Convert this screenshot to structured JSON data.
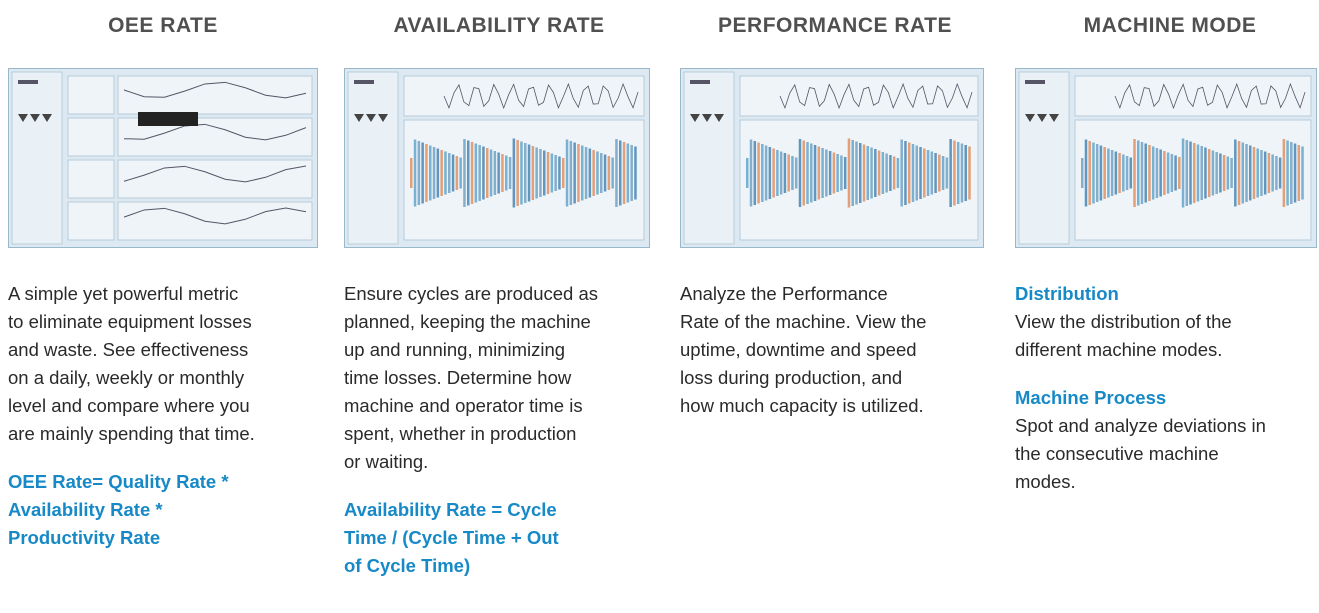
{
  "columns": [
    {
      "title": "OEE RATE",
      "sections": [
        {
          "body": [
            "A simple yet powerful metric",
            "to eliminate equipment losses",
            "and waste. See effectiveness",
            "on a daily, weekly or monthly",
            "level and compare where you",
            "are mainly spending that time."
          ]
        },
        {
          "highlight": [
            "OEE Rate= Quality Rate *",
            "Availability Rate *",
            "Productivity Rate"
          ]
        }
      ]
    },
    {
      "title": "AVAILABILITY RATE",
      "sections": [
        {
          "body": [
            "Ensure cycles are produced as",
            "planned, keeping the machine",
            "up and running, minimizing",
            "time losses. Determine how",
            "machine and operator time is",
            "spent, whether in production",
            "or waiting."
          ]
        },
        {
          "highlight": [
            "Availability Rate = Cycle",
            "Time / (Cycle Time + Out",
            "of Cycle Time)"
          ]
        }
      ]
    },
    {
      "title": "PERFORMANCE RATE",
      "sections": [
        {
          "body": [
            "Analyze the Performance",
            "Rate of the machine. View the",
            "uptime, downtime and speed",
            "loss during production, and",
            "how much capacity is utilized."
          ]
        }
      ]
    },
    {
      "title": "MACHINE MODE",
      "sections": [
        {
          "heading": "Distribution",
          "body": [
            "View the distribution of the",
            "different machine modes."
          ]
        },
        {
          "heading": "Machine Process",
          "body": [
            "Spot and analyze deviations in",
            "the consecutive machine",
            "modes."
          ]
        }
      ]
    }
  ]
}
